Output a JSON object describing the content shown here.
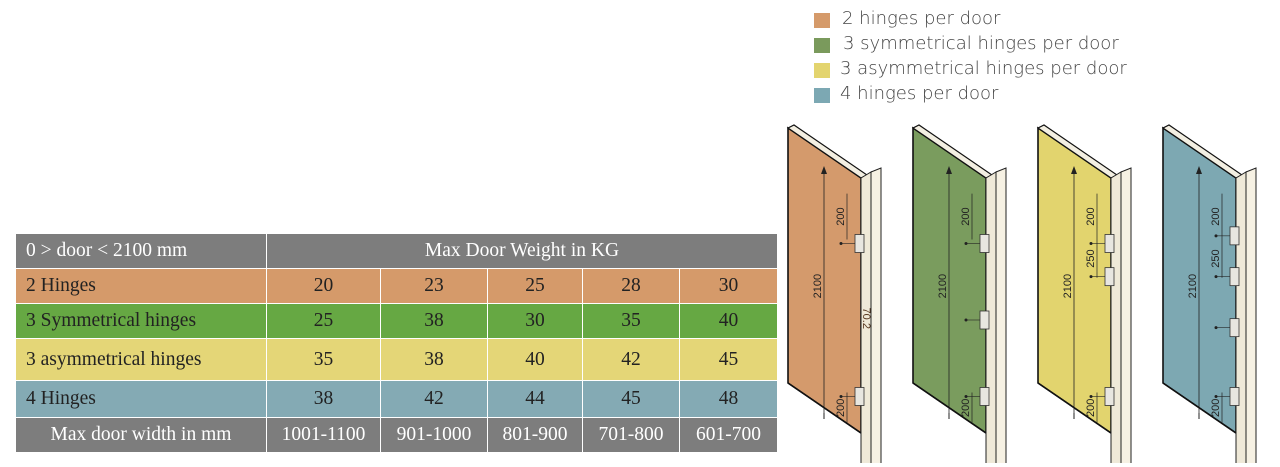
{
  "legend": {
    "items": [
      {
        "label": "2 hinges per door",
        "color": "#d59a6a"
      },
      {
        "label": "3 symmetrical hinges per door",
        "color": "#7a9a5c"
      },
      {
        "label": "3 asymmetrical hinges per door",
        "color": "#e3d46e"
      },
      {
        "label": "4 hinges per door",
        "color": "#7ca8b3"
      }
    ]
  },
  "table": {
    "corner": "0 > door < 2100 mm",
    "header": "Max Door Weight in KG",
    "rows": [
      {
        "label": "2 Hinges",
        "values": [
          "20",
          "23",
          "25",
          "28",
          "30"
        ],
        "color": "#d59a6a"
      },
      {
        "label": "3 Symmetrical hinges",
        "values": [
          "25",
          "38",
          "30",
          "35",
          "40"
        ],
        "color": "#66a843"
      },
      {
        "label": "3 asymmetrical hinges",
        "values": [
          "35",
          "38",
          "40",
          "42",
          "45"
        ],
        "color": "#e4d677"
      },
      {
        "label": "4 Hinges",
        "values": [
          "38",
          "42",
          "44",
          "45",
          "48"
        ],
        "color": "#84aab4"
      }
    ],
    "footer_label": "Max door width in mm",
    "widths": [
      "1001-1100",
      "901-1000",
      "801-900",
      "701-800",
      "601-700"
    ]
  },
  "doors": [
    {
      "color": "#d49a6c",
      "height_label": "2100",
      "dims": [
        "200",
        "200"
      ],
      "extra": "70.2",
      "scheme": "2 hinges"
    },
    {
      "color": "#7a9c5e",
      "height_label": "2100",
      "dims": [
        "200",
        "200"
      ],
      "scheme": "3 symmetrical hinges"
    },
    {
      "color": "#e2d46e",
      "height_label": "2100",
      "dims": [
        "200",
        "250",
        "200"
      ],
      "scheme": "3 asymmetrical hinges"
    },
    {
      "color": "#7da8b2",
      "height_label": "2100",
      "dims": [
        "200",
        "250",
        "200"
      ],
      "scheme": "4 hinges"
    }
  ]
}
